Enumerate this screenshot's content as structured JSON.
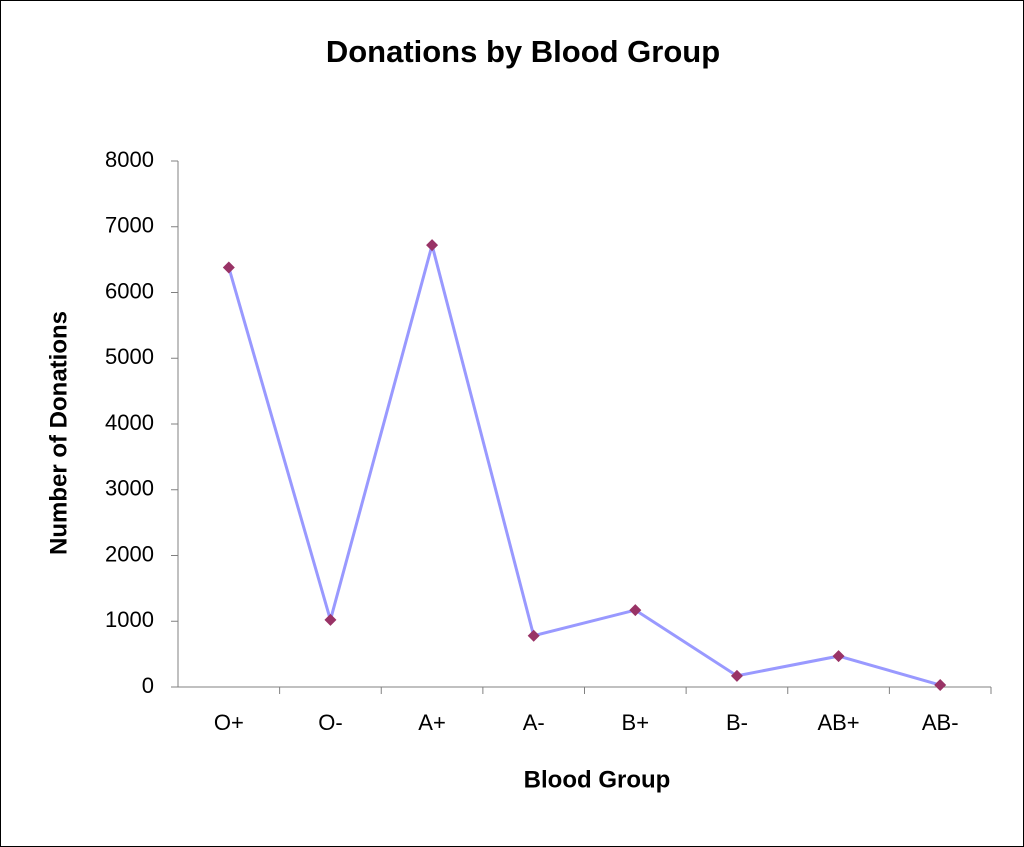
{
  "chart_data": {
    "type": "line",
    "title": "Donations by Blood Group",
    "x_label": "Blood Group",
    "y_label": "Number of Donations",
    "categories": [
      "O+",
      "O-",
      "A+",
      "A-",
      "B+",
      "B-",
      "AB+",
      "AB-"
    ],
    "series": [
      {
        "name": "Donations",
        "color": "#9999ff",
        "marker_color": "#993366",
        "values": [
          6380,
          1020,
          6720,
          780,
          1170,
          170,
          470,
          30
        ]
      }
    ],
    "ylim": [
      0,
      8000
    ],
    "yticks": [
      0,
      1000,
      2000,
      3000,
      4000,
      5000,
      6000,
      7000,
      8000
    ],
    "grid": false
  }
}
